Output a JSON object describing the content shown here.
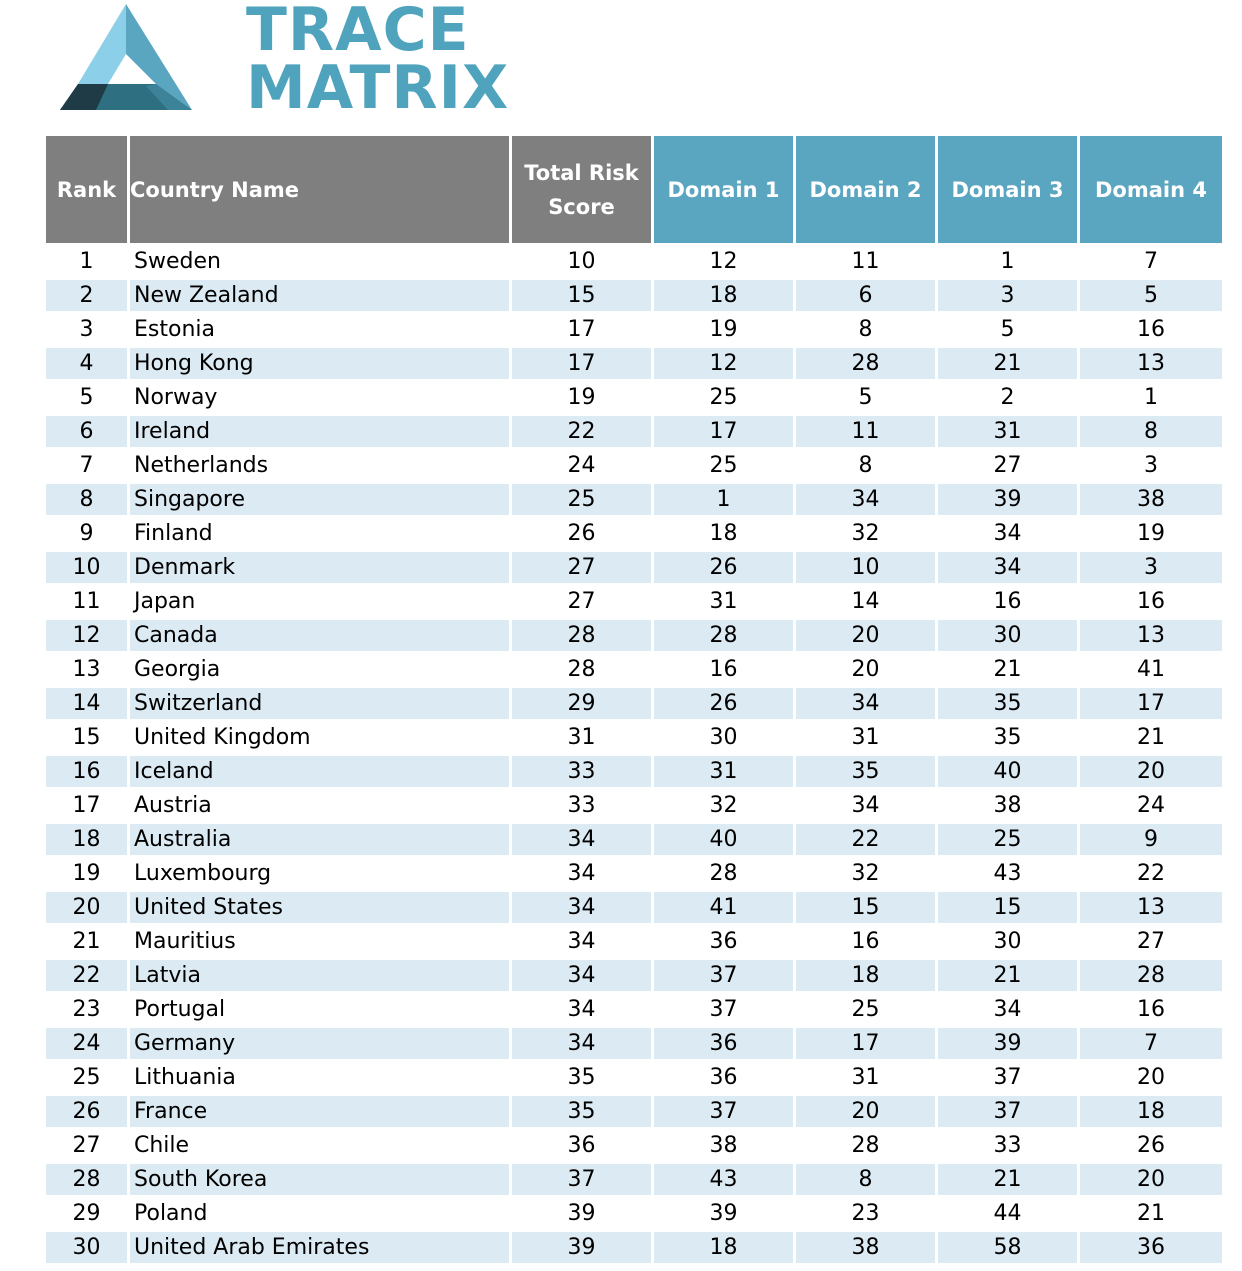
{
  "brand": {
    "line1": "TRACE",
    "line2": "MATRIX",
    "colors": {
      "light": "#8ccfe8",
      "mid": "#4fa3bd",
      "dark": "#2f6f82",
      "darkest": "#1f3b45"
    }
  },
  "table": {
    "headers": {
      "rank": "Rank",
      "country": "Country Name",
      "total_line1": "Total Risk",
      "total_line2": "Score",
      "d1": "Domain 1",
      "d2": "Domain 2",
      "d3": "Domain 3",
      "d4": "Domain 4"
    },
    "header_colors": {
      "gray": "#7f7f7f",
      "teal": "#5aa5bf"
    },
    "stripe_color": "#dcebf3",
    "rows": [
      [
        "1",
        "Sweden",
        "10",
        "12",
        "11",
        "1",
        "7"
      ],
      [
        "2",
        "New Zealand",
        "15",
        "18",
        "6",
        "3",
        "5"
      ],
      [
        "3",
        "Estonia",
        "17",
        "19",
        "8",
        "5",
        "16"
      ],
      [
        "4",
        "Hong Kong",
        "17",
        "12",
        "28",
        "21",
        "13"
      ],
      [
        "5",
        "Norway",
        "19",
        "25",
        "5",
        "2",
        "1"
      ],
      [
        "6",
        "Ireland",
        "22",
        "17",
        "11",
        "31",
        "8"
      ],
      [
        "7",
        "Netherlands",
        "24",
        "25",
        "8",
        "27",
        "3"
      ],
      [
        "8",
        "Singapore",
        "25",
        "1",
        "34",
        "39",
        "38"
      ],
      [
        "9",
        "Finland",
        "26",
        "18",
        "32",
        "34",
        "19"
      ],
      [
        "10",
        "Denmark",
        "27",
        "26",
        "10",
        "34",
        "3"
      ],
      [
        "11",
        "Japan",
        "27",
        "31",
        "14",
        "16",
        "16"
      ],
      [
        "12",
        "Canada",
        "28",
        "28",
        "20",
        "30",
        "13"
      ],
      [
        "13",
        "Georgia",
        "28",
        "16",
        "20",
        "21",
        "41"
      ],
      [
        "14",
        "Switzerland",
        "29",
        "26",
        "34",
        "35",
        "17"
      ],
      [
        "15",
        "United Kingdom",
        "31",
        "30",
        "31",
        "35",
        "21"
      ],
      [
        "16",
        "Iceland",
        "33",
        "31",
        "35",
        "40",
        "20"
      ],
      [
        "17",
        "Austria",
        "33",
        "32",
        "34",
        "38",
        "24"
      ],
      [
        "18",
        "Australia",
        "34",
        "40",
        "22",
        "25",
        "9"
      ],
      [
        "19",
        "Luxembourg",
        "34",
        "28",
        "32",
        "43",
        "22"
      ],
      [
        "20",
        "United States",
        "34",
        "41",
        "15",
        "15",
        "13"
      ],
      [
        "21",
        "Mauritius",
        "34",
        "36",
        "16",
        "30",
        "27"
      ],
      [
        "22",
        "Latvia",
        "34",
        "37",
        "18",
        "21",
        "28"
      ],
      [
        "23",
        "Portugal",
        "34",
        "37",
        "25",
        "34",
        "16"
      ],
      [
        "24",
        "Germany",
        "34",
        "36",
        "17",
        "39",
        "7"
      ],
      [
        "25",
        "Lithuania",
        "35",
        "36",
        "31",
        "37",
        "20"
      ],
      [
        "26",
        "France",
        "35",
        "37",
        "20",
        "37",
        "18"
      ],
      [
        "27",
        "Chile",
        "36",
        "38",
        "28",
        "33",
        "26"
      ],
      [
        "28",
        "South Korea",
        "37",
        "43",
        "8",
        "21",
        "20"
      ],
      [
        "29",
        "Poland",
        "39",
        "39",
        "23",
        "44",
        "21"
      ],
      [
        "30",
        "United Arab Emirates",
        "39",
        "18",
        "38",
        "58",
        "36"
      ]
    ]
  }
}
